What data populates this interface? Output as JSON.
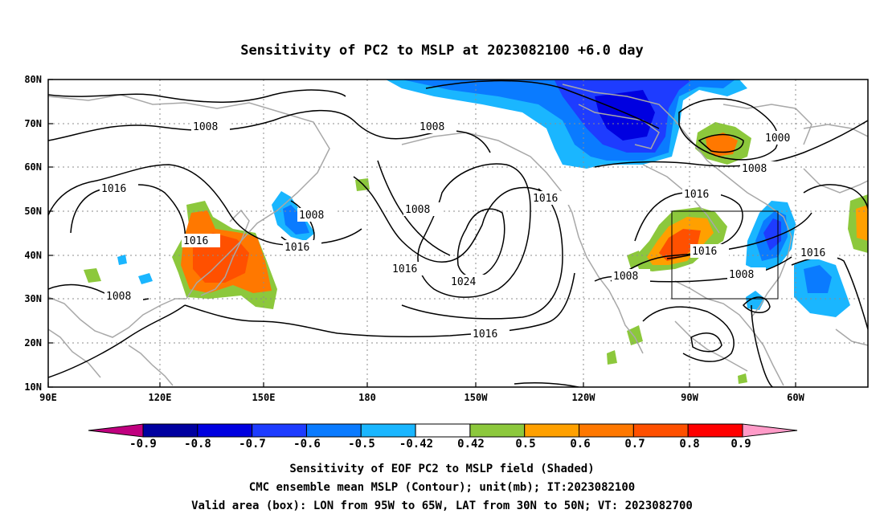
{
  "title": "Sensitivity of PC2 to MSLP at 2023082100 +6.0 day",
  "map": {
    "lat_labels": [
      "80N",
      "70N",
      "60N",
      "50N",
      "40N",
      "30N",
      "20N",
      "10N"
    ],
    "lon_labels": [
      "90E",
      "120E",
      "150E",
      "180",
      "150W",
      "120W",
      "90W",
      "60W"
    ],
    "lat_range": [
      10,
      80
    ],
    "lon_range": [
      90,
      310
    ],
    "grid": true,
    "contour_labels": [
      "1008",
      "1008",
      "1000",
      "1008",
      "1016",
      "1016",
      "1008",
      "1016",
      "1016",
      "1024",
      "1016",
      "1016",
      "1016",
      "1008",
      "1008",
      "1016",
      "1008",
      "1008",
      "1016"
    ],
    "valid_box": {
      "lon": [
        265,
        295
      ],
      "lat": [
        30,
        50
      ]
    }
  },
  "colorbar": {
    "tick_labels": [
      "-0.9",
      "-0.8",
      "-0.7",
      "-0.6",
      "-0.5",
      "-0.42",
      "0.42",
      "0.5",
      "0.6",
      "0.7",
      "0.8",
      "0.9"
    ],
    "colors": [
      "#c0007f",
      "#0000a0",
      "#0000e0",
      "#1e3cff",
      "#0a7bff",
      "#1ab6ff",
      "#ffffff",
      "#8cc83c",
      "#ffa000",
      "#ff7800",
      "#ff5000",
      "#ff0000",
      "#ff9bc8"
    ]
  },
  "captions": {
    "line1": "Sensitivity of EOF PC2 to MSLP field (Shaded)",
    "line2": "CMC ensemble mean MSLP (Contour); unit(mb); IT:2023082100",
    "line3": "Valid area (box): LON from 95W to 65W, LAT from 30N to 50N; VT: 2023082700"
  }
}
